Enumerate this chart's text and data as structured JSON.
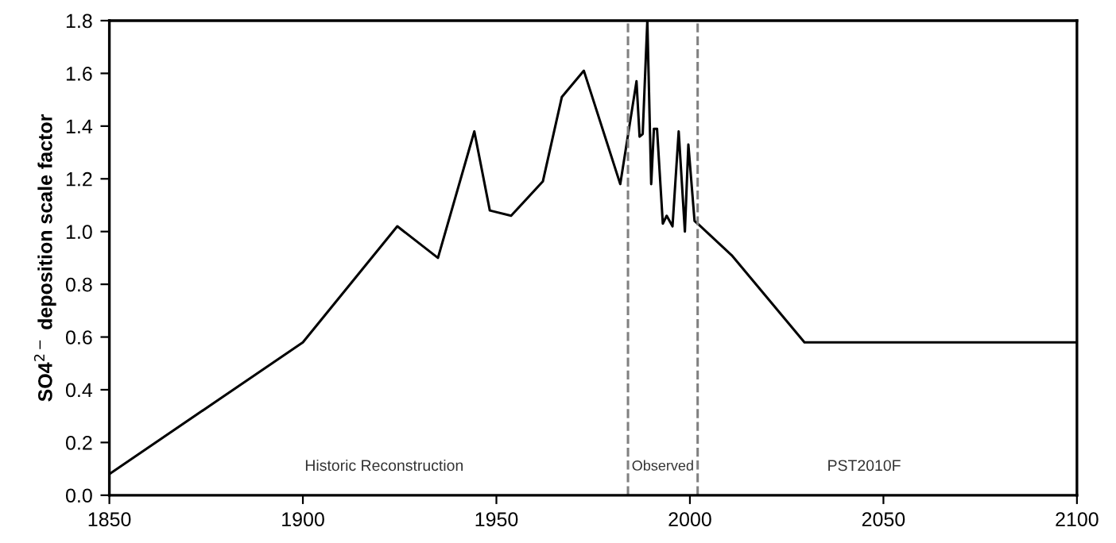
{
  "chart_data": {
    "type": "line",
    "ylabel": "SO4$^{2−}$ deposition scale factor",
    "x": [
      1850,
      1900,
      1924.4,
      1934.9,
      1944.3,
      1948.3,
      1953.8,
      1962,
      1966.9,
      1972.6,
      1982,
      1986.2,
      1987,
      1987.8,
      1989,
      1990,
      1990.7,
      1991.5,
      1993,
      1994,
      1995.5,
      1997.1,
      1998.7,
      1999.6,
      2001.2,
      2002,
      2010.8,
      2029.6,
      2100
    ],
    "series": [
      {
        "color": "#000000",
        "values": [
          0.08,
          0.58,
          1.02,
          0.9,
          1.38,
          1.08,
          1.06,
          1.19,
          1.51,
          1.61,
          1.18,
          1.57,
          1.36,
          1.37,
          1.8,
          1.18,
          1.39,
          1.39,
          1.03,
          1.06,
          1.02,
          1.38,
          1.0,
          1.33,
          1.04,
          1.03,
          0.91,
          0.58,
          0.58
        ]
      }
    ],
    "xlim": [
      1850,
      2100
    ],
    "ylim": [
      0,
      1.8
    ],
    "xticks": [
      1850,
      1900,
      1950,
      2000,
      2050,
      2100
    ],
    "yticks": [
      {
        "value": 0,
        "label": "0.0"
      },
      {
        "value": 0.2,
        "label": "0.2"
      },
      {
        "value": 0.4,
        "label": "0.4"
      },
      {
        "value": 0.6,
        "label": "0.6"
      },
      {
        "value": 0.8,
        "label": "0.8"
      },
      {
        "value": 1.0,
        "label": "1.0"
      },
      {
        "value": 1.2,
        "label": "1.2"
      },
      {
        "value": 1.4,
        "label": "1.4"
      },
      {
        "value": 1.6,
        "label": "1.6"
      },
      {
        "value": 1.8,
        "label": "1.8"
      }
    ],
    "ref_lines": [
      {
        "axis": "x",
        "value": 1984,
        "color": "#808080",
        "line_style": "dashed"
      },
      {
        "axis": "x",
        "value": 2002,
        "color": "#808080",
        "line_style": "dashed"
      }
    ],
    "annotations": [
      "Historic Reconstruction",
      "Observed",
      "PST2010F"
    ],
    "grid": false,
    "legend": false,
    "marker": "none",
    "line_style": "solid"
  }
}
